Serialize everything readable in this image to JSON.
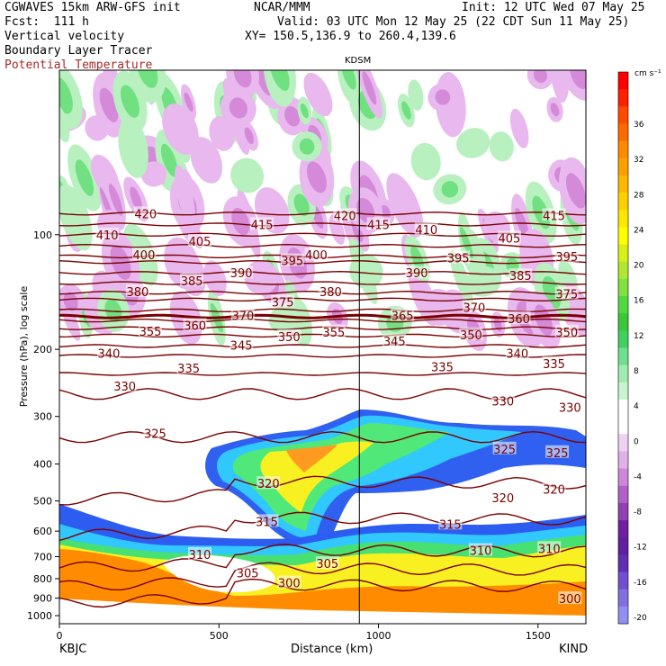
{
  "header": {
    "line1_left": "CGWAVES 15km ARW-GFS init",
    "line1_mid": "NCAR/MMM",
    "line1_right": "Init: 12 UTC Wed 07 May 25",
    "line2_left": "Fcst:  111 h",
    "line2_right": "Valid: 03 UTC Mon 12 May 25 (22 CDT Sun 11 May 25)",
    "line3_left": "Vertical velocity",
    "line3_right": "XY= 150.5,136.9 to 260.4,139.6",
    "line4_left": "Boundary Layer Tracer",
    "line5_left": "Potential Temperature"
  },
  "station_marker": "KDSM",
  "left_station": "KBJC",
  "right_station": "KIND",
  "colors": {
    "theta_contour": "#7a0000",
    "terrain": "#ff8c00",
    "tracer_blue": "#2060ff",
    "tracer_cyan": "#30c0ff",
    "tracer_green": "#40e070",
    "tracer_yellow": "#f8f020",
    "tracer_orange": "#ff9a20",
    "updraft_green": "#40d840",
    "downdraft_purple": "#a040b0"
  },
  "chart_data": {
    "type": "heatmap",
    "xlabel": "Distance (km)",
    "ylabel": "Pressure (hPa), log scale",
    "xlim": [
      0,
      1650
    ],
    "x_ticks": [
      0,
      500,
      1000,
      1500
    ],
    "y_ticks": [
      100,
      200,
      300,
      400,
      500,
      600,
      700,
      800,
      900,
      1000
    ],
    "ylim": [
      1050,
      37
    ],
    "y_scale": "log",
    "colorbar": {
      "unit": "cm s⁻¹",
      "labels": [
        "36",
        "32",
        "28",
        "24",
        "20",
        "16",
        "12",
        "8",
        "4",
        "0",
        "-4",
        "-8",
        "-12",
        "-16",
        "-20"
      ]
    },
    "theta_contours": [
      {
        "value": 420,
        "p": 88
      },
      {
        "value": 415,
        "p": 94
      },
      {
        "value": 410,
        "p": 100
      },
      {
        "value": 405,
        "p": 107
      },
      {
        "value": 400,
        "p": 114
      },
      {
        "value": 395,
        "p": 118
      },
      {
        "value": 390,
        "p": 126
      },
      {
        "value": 385,
        "p": 134
      },
      {
        "value": 380,
        "p": 142
      },
      {
        "value": 375,
        "p": 148
      },
      {
        "value": 370,
        "p": 158
      },
      {
        "value": 365,
        "p": 164
      },
      {
        "value": 360,
        "p": 168
      },
      {
        "value": 355,
        "p": 176
      },
      {
        "value": 350,
        "p": 184
      },
      {
        "value": 345,
        "p": 196
      },
      {
        "value": 340,
        "p": 208
      },
      {
        "value": 335,
        "p": 232
      },
      {
        "value": 330,
        "p": 262
      },
      {
        "value": 325,
        "p": 340
      },
      {
        "value": 320,
        "p": 450
      },
      {
        "value": 315,
        "p": 560
      },
      {
        "value": 310,
        "p": 680
      },
      {
        "value": 305,
        "p": 760
      },
      {
        "value": 300,
        "p": 840
      }
    ],
    "labels_printed": [
      {
        "text": "420",
        "x": 270,
        "p": 88
      },
      {
        "text": "420",
        "x": 895,
        "p": 89
      },
      {
        "text": "415",
        "x": 635,
        "p": 94
      },
      {
        "text": "415",
        "x": 1000,
        "p": 94
      },
      {
        "text": "415",
        "x": 1550,
        "p": 89
      },
      {
        "text": "410",
        "x": 150,
        "p": 100
      },
      {
        "text": "410",
        "x": 1150,
        "p": 97
      },
      {
        "text": "405",
        "x": 440,
        "p": 104
      },
      {
        "text": "405",
        "x": 1410,
        "p": 102
      },
      {
        "text": "400",
        "x": 265,
        "p": 113
      },
      {
        "text": "400",
        "x": 805,
        "p": 113
      },
      {
        "text": "395",
        "x": 730,
        "p": 117
      },
      {
        "text": "395",
        "x": 1250,
        "p": 115
      },
      {
        "text": "395",
        "x": 1590,
        "p": 114
      },
      {
        "text": "390",
        "x": 570,
        "p": 126
      },
      {
        "text": "390",
        "x": 1120,
        "p": 126
      },
      {
        "text": "385",
        "x": 415,
        "p": 132
      },
      {
        "text": "385",
        "x": 1445,
        "p": 128
      },
      {
        "text": "380",
        "x": 245,
        "p": 141
      },
      {
        "text": "380",
        "x": 850,
        "p": 141
      },
      {
        "text": "375",
        "x": 700,
        "p": 150
      },
      {
        "text": "375",
        "x": 1590,
        "p": 143
      },
      {
        "text": "370",
        "x": 575,
        "p": 163
      },
      {
        "text": "370",
        "x": 1300,
        "p": 155
      },
      {
        "text": "365",
        "x": 1075,
        "p": 163
      },
      {
        "text": "360",
        "x": 425,
        "p": 173
      },
      {
        "text": "360",
        "x": 1440,
        "p": 166
      },
      {
        "text": "355",
        "x": 285,
        "p": 179
      },
      {
        "text": "355",
        "x": 860,
        "p": 180
      },
      {
        "text": "350",
        "x": 720,
        "p": 185
      },
      {
        "text": "350",
        "x": 1290,
        "p": 183
      },
      {
        "text": "350",
        "x": 1590,
        "p": 180
      },
      {
        "text": "345",
        "x": 570,
        "p": 195
      },
      {
        "text": "345",
        "x": 1050,
        "p": 190
      },
      {
        "text": "340",
        "x": 155,
        "p": 205
      },
      {
        "text": "340",
        "x": 1435,
        "p": 205
      },
      {
        "text": "335",
        "x": 405,
        "p": 224
      },
      {
        "text": "335",
        "x": 1200,
        "p": 222
      },
      {
        "text": "335",
        "x": 1550,
        "p": 218
      },
      {
        "text": "330",
        "x": 205,
        "p": 250
      },
      {
        "text": "330",
        "x": 1390,
        "p": 273
      },
      {
        "text": "330",
        "x": 1600,
        "p": 284
      },
      {
        "text": "325",
        "x": 300,
        "p": 332
      },
      {
        "text": "325",
        "x": 1395,
        "p": 365
      },
      {
        "text": "325",
        "x": 1560,
        "p": 373
      },
      {
        "text": "320",
        "x": 655,
        "p": 450
      },
      {
        "text": "320",
        "x": 1390,
        "p": 490
      },
      {
        "text": "320",
        "x": 1550,
        "p": 465
      },
      {
        "text": "315",
        "x": 650,
        "p": 566
      },
      {
        "text": "315",
        "x": 1225,
        "p": 575
      },
      {
        "text": "310",
        "x": 440,
        "p": 690
      },
      {
        "text": "310",
        "x": 1320,
        "p": 674
      },
      {
        "text": "310",
        "x": 1535,
        "p": 666
      },
      {
        "text": "305",
        "x": 590,
        "p": 772
      },
      {
        "text": "305",
        "x": 840,
        "p": 730
      },
      {
        "text": "300",
        "x": 720,
        "p": 820
      },
      {
        "text": "300",
        "x": 1600,
        "p": 902
      }
    ],
    "cross_section_marker_x_km": 940
  }
}
